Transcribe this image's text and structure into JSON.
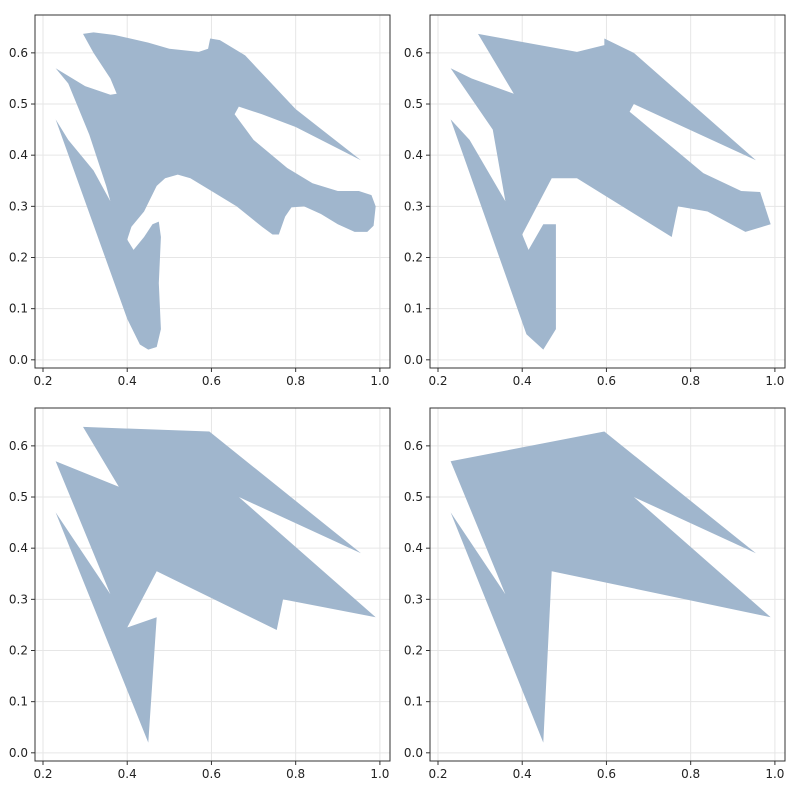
{
  "chart_data": [
    {
      "type": "polygon",
      "color": "#a0b6cd",
      "grid": true,
      "xlim": [
        0.181,
        1.024
      ],
      "ylim": [
        -0.016,
        0.674
      ],
      "xticks": [
        0.2,
        0.4,
        0.6,
        0.8,
        {
          "value": 1,
          "label": "1.0"
        }
      ],
      "yticks": [
        {
          "value": 0,
          "label": "0.0"
        },
        0.1,
        0.2,
        0.3,
        0.4,
        0.5,
        0.6
      ],
      "x": [
        0.295,
        0.32,
        0.37,
        0.45,
        0.5,
        0.57,
        0.592,
        0.597,
        0.62,
        0.68,
        0.8,
        0.955,
        0.8,
        0.72,
        0.665,
        0.655,
        0.7,
        0.78,
        0.84,
        0.9,
        0.95,
        0.98,
        0.99,
        0.985,
        0.97,
        0.94,
        0.9,
        0.86,
        0.82,
        0.79,
        0.775,
        0.76,
        0.745,
        0.72,
        0.66,
        0.6,
        0.55,
        0.52,
        0.49,
        0.47,
        0.44,
        0.41,
        0.4,
        0.415,
        0.44,
        0.46,
        0.475,
        0.48,
        0.475,
        0.48,
        0.47,
        0.45,
        0.43,
        0.4,
        0.23,
        0.26,
        0.32,
        0.36,
        0.35,
        0.31,
        0.28,
        0.26,
        0.23,
        0.25,
        0.3,
        0.36,
        0.375,
        0.36,
        0.32
      ],
      "y": [
        0.637,
        0.64,
        0.635,
        0.62,
        0.608,
        0.602,
        0.608,
        0.628,
        0.625,
        0.595,
        0.49,
        0.39,
        0.455,
        0.48,
        0.495,
        0.48,
        0.43,
        0.375,
        0.345,
        0.33,
        0.33,
        0.322,
        0.3,
        0.262,
        0.25,
        0.25,
        0.265,
        0.285,
        0.3,
        0.298,
        0.28,
        0.245,
        0.245,
        0.26,
        0.3,
        0.33,
        0.355,
        0.362,
        0.355,
        0.34,
        0.29,
        0.26,
        0.235,
        0.215,
        0.24,
        0.265,
        0.27,
        0.24,
        0.15,
        0.06,
        0.025,
        0.02,
        0.03,
        0.08,
        0.47,
        0.43,
        0.37,
        0.31,
        0.34,
        0.44,
        0.5,
        0.54,
        0.57,
        0.56,
        0.535,
        0.518,
        0.52,
        0.55,
        0.6
      ]
    },
    {
      "type": "polygon",
      "color": "#a0b6cd",
      "grid": true,
      "xlim": [
        0.181,
        1.024
      ],
      "ylim": [
        -0.016,
        0.674
      ],
      "xticks": [
        0.2,
        0.4,
        0.6,
        0.8,
        {
          "value": 1,
          "label": "1.0"
        }
      ],
      "yticks": [
        {
          "value": 0,
          "label": "0.0"
        },
        0.1,
        0.2,
        0.3,
        0.4,
        0.5,
        0.6
      ],
      "x": [
        0.295,
        0.53,
        0.595,
        0.595,
        0.665,
        0.955,
        0.665,
        0.655,
        0.83,
        0.92,
        0.965,
        0.99,
        0.93,
        0.84,
        0.77,
        0.755,
        0.53,
        0.47,
        0.4,
        0.415,
        0.45,
        0.48,
        0.48,
        0.45,
        0.41,
        0.23,
        0.275,
        0.36,
        0.33,
        0.23,
        0.28,
        0.38
      ],
      "y": [
        0.637,
        0.602,
        0.615,
        0.628,
        0.6,
        0.39,
        0.5,
        0.485,
        0.365,
        0.33,
        0.328,
        0.265,
        0.25,
        0.29,
        0.3,
        0.24,
        0.355,
        0.355,
        0.245,
        0.215,
        0.265,
        0.265,
        0.06,
        0.02,
        0.05,
        0.47,
        0.43,
        0.31,
        0.45,
        0.57,
        0.55,
        0.52
      ]
    },
    {
      "type": "polygon",
      "color": "#a0b6cd",
      "grid": true,
      "xlim": [
        0.181,
        1.024
      ],
      "ylim": [
        -0.016,
        0.674
      ],
      "xticks": [
        0.2,
        0.4,
        0.6,
        0.8,
        {
          "value": 1,
          "label": "1.0"
        }
      ],
      "yticks": [
        {
          "value": 0,
          "label": "0.0"
        },
        0.1,
        0.2,
        0.3,
        0.4,
        0.5,
        0.6
      ],
      "x": [
        0.295,
        0.595,
        0.955,
        0.665,
        0.99,
        0.77,
        0.755,
        0.47,
        0.4,
        0.47,
        0.45,
        0.23,
        0.36,
        0.23,
        0.38
      ],
      "y": [
        0.637,
        0.628,
        0.39,
        0.5,
        0.265,
        0.3,
        0.24,
        0.355,
        0.245,
        0.265,
        0.02,
        0.47,
        0.31,
        0.57,
        0.52
      ]
    },
    {
      "type": "polygon",
      "color": "#a0b6cd",
      "grid": true,
      "xlim": [
        0.181,
        1.024
      ],
      "ylim": [
        -0.016,
        0.674
      ],
      "xticks": [
        0.2,
        0.4,
        0.6,
        0.8,
        {
          "value": 1,
          "label": "1.0"
        }
      ],
      "yticks": [
        {
          "value": 0,
          "label": "0.0"
        },
        0.1,
        0.2,
        0.3,
        0.4,
        0.5,
        0.6
      ],
      "x": [
        0.23,
        0.595,
        0.955,
        0.665,
        0.99,
        0.47,
        0.45,
        0.23,
        0.36
      ],
      "y": [
        0.57,
        0.628,
        0.39,
        0.5,
        0.265,
        0.355,
        0.02,
        0.47,
        0.31
      ]
    }
  ]
}
